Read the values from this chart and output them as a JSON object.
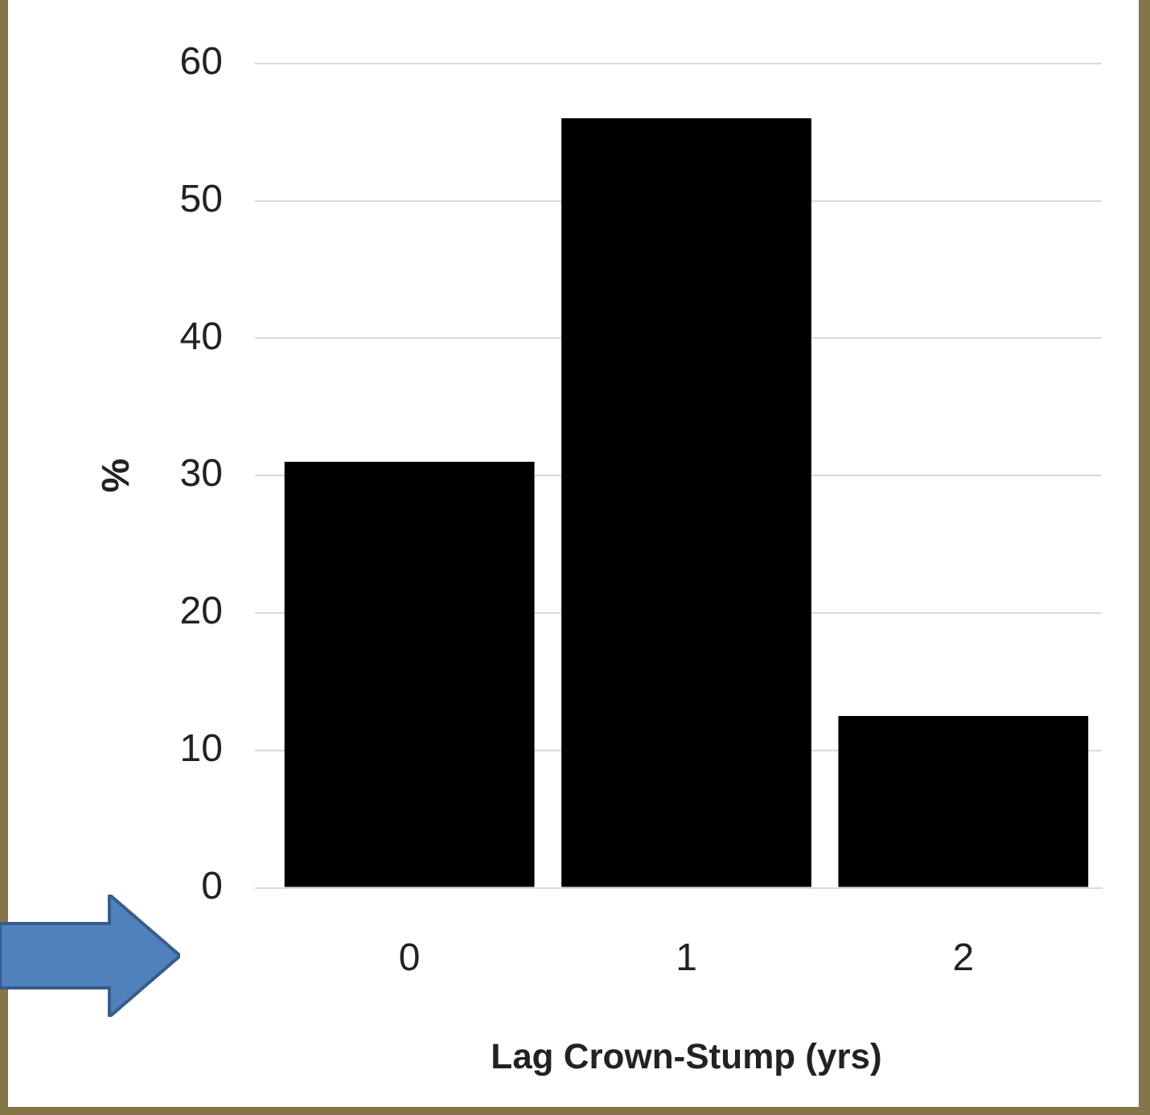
{
  "chart_data": {
    "type": "bar",
    "categories": [
      "0",
      "1",
      "2"
    ],
    "values": [
      31,
      56,
      12.5
    ],
    "color": "#000000",
    "xlabel": "Lag Crown-Stump (yrs)",
    "ylabel": "%",
    "ylim": [
      0,
      60
    ],
    "yticks": [
      0,
      10,
      20,
      30,
      40,
      50,
      60
    ],
    "grid": "y"
  }
}
